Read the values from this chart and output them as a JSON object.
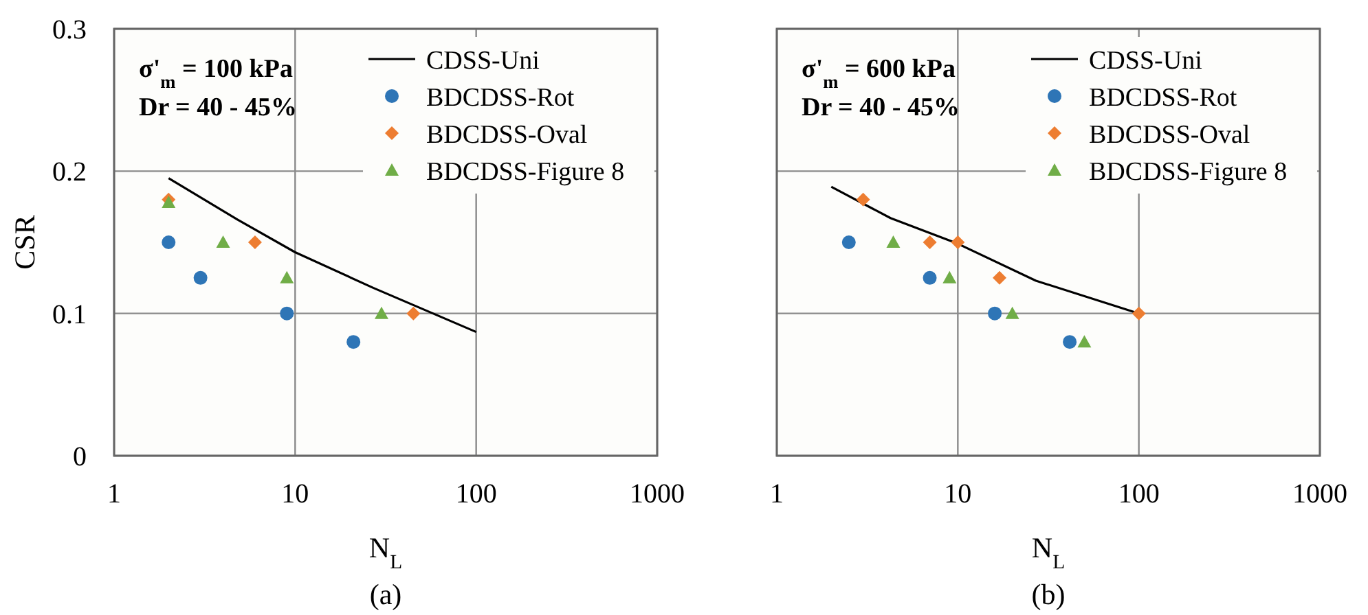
{
  "chart_data": [
    {
      "type": "scatter",
      "title": "(a)",
      "xlabel": "N$_{L}$",
      "ylabel": "CSR",
      "log": "x",
      "xlim": [
        1,
        1000
      ],
      "xticks": [
        1,
        10,
        100,
        1000
      ],
      "ylim": [
        0,
        0.3
      ],
      "yticks": [
        0,
        0.1,
        0.2,
        0.3
      ],
      "grid": true,
      "legend": "top right",
      "annotations": [
        "σ'$_{m}$ = 100 kPa",
        "Dr = 40 - 45%"
      ],
      "series": [
        {
          "name": "CDSS-Uni",
          "type": "line",
          "color": "#000000",
          "marker": "none",
          "x": [
            2,
            4.8,
            10,
            27,
            100
          ],
          "values": [
            0.195,
            0.166,
            0.143,
            0.118,
            0.087
          ]
        },
        {
          "name": "BDCDSS-Rot",
          "color": "#2e75b6",
          "marker": "circle",
          "x": [
            2,
            3,
            9,
            21
          ],
          "values": [
            0.15,
            0.125,
            0.1,
            0.08
          ]
        },
        {
          "name": "BDCDSS-Oval",
          "color": "#ed7d31",
          "marker": "diamond",
          "x": [
            2,
            6,
            45
          ],
          "values": [
            0.18,
            0.15,
            0.1
          ]
        },
        {
          "name": "BDCDSS-Figure 8",
          "color": "#70ad47",
          "marker": "triangle",
          "x": [
            2,
            4,
            9,
            30
          ],
          "values": [
            0.178,
            0.15,
            0.125,
            0.1
          ]
        }
      ]
    },
    {
      "type": "scatter",
      "title": "(b)",
      "xlabel": "N$_{L}$",
      "log": "x",
      "xlim": [
        1,
        1000
      ],
      "xticks": [
        1,
        10,
        100,
        1000
      ],
      "ylim": [
        0,
        0.3
      ],
      "yticks": [
        0,
        0.1,
        0.2,
        0.3
      ],
      "tick_labels": "x",
      "grid": true,
      "legend": "top right",
      "annotations": [
        "σ'$_{m}$ = 600 kPa",
        "Dr = 40 - 45%"
      ],
      "series": [
        {
          "name": "CDSS-Uni",
          "type": "line",
          "color": "#000000",
          "marker": "none",
          "x": [
            2,
            4.25,
            10,
            27,
            100
          ],
          "values": [
            0.189,
            0.167,
            0.149,
            0.123,
            0.1
          ]
        },
        {
          "name": "BDCDSS-Rot",
          "color": "#2e75b6",
          "marker": "circle",
          "x": [
            2.5,
            7,
            16,
            41.5
          ],
          "values": [
            0.15,
            0.125,
            0.1,
            0.08
          ]
        },
        {
          "name": "BDCDSS-Oval",
          "color": "#ed7d31",
          "marker": "diamond",
          "x": [
            3,
            7,
            10,
            17,
            100
          ],
          "values": [
            0.18,
            0.15,
            0.15,
            0.125,
            0.1
          ]
        },
        {
          "name": "BDCDSS-Figure 8",
          "color": "#70ad47",
          "marker": "triangle",
          "x": [
            4.4,
            9,
            20,
            50
          ],
          "values": [
            0.15,
            0.125,
            0.1,
            0.08
          ]
        }
      ]
    }
  ]
}
